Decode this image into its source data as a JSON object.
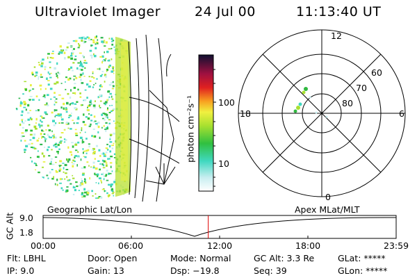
{
  "header": {
    "instrument": "Ultraviolet Imager",
    "date": "24 Jul 00",
    "time": "11:13:40 UT"
  },
  "colorbar": {
    "unit_label": "photon cm⁻²s⁻¹",
    "tick_100": "100",
    "tick_10": "10"
  },
  "polar": {
    "mlt_12": "12",
    "mlt_18": "18",
    "mlt_6": "6",
    "mlt_0": "0",
    "lat_60": "60",
    "lat_70": "70",
    "lat_80": "80"
  },
  "timeline": {
    "left_title": "Geographic Lat/Lon",
    "right_title": "Apex MLat/MLT",
    "y_label": "GC Alt",
    "y_top": "9.0",
    "y_bottom": "1.8",
    "x_ticks": [
      "00:00",
      "06:00",
      "12:00",
      "18:00",
      "23:59"
    ],
    "current_time_fraction": 0.4678
  },
  "status": {
    "flt": "Flt: LBHL",
    "ip": "IP:  9.0",
    "door": "Door: Open",
    "gain": "Gain: 13",
    "mode": "Mode: Normal",
    "dsp": "Dsp:  −19.8",
    "gc_alt": "GC Alt: 3.3 Re",
    "seq": "Seq: 39",
    "glat": "GLat: *****",
    "glon": "GLon: *****"
  }
}
